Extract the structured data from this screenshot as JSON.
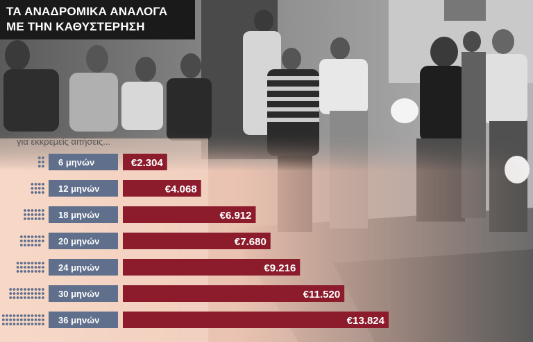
{
  "header": {
    "title_line1": "ΤΑ ΑΝΑΔΡΟΜΙΚΑ ΑΝΑΛΟΓΑ",
    "title_line2": "ΜΕ ΤΗΝ ΚΑΘΥΣΤΕΡΗΣΗ"
  },
  "subtitle": "για εκκρεμείς αιτήσεις...",
  "colors": {
    "label_box": "#5f6f8c",
    "bar": "#8c1c2c",
    "dot": "#5f6f8c",
    "title_bg": "#1a1a1a"
  },
  "chart_data": {
    "type": "bar",
    "orientation": "horizontal",
    "title": "ΤΑ ΑΝΑΔΡΟΜΙΚΑ ΑΝΑΛΟΓΑ ΜΕ ΤΗΝ ΚΑΘΥΣΤΕΡΗΣΗ",
    "subtitle": "για εκκρεμείς αιτήσεις...",
    "categories": [
      "6 μηνών",
      "12 μηνών",
      "18 μηνών",
      "20 μηνών",
      "24 μηνών",
      "30 μηνών",
      "36 μηνών"
    ],
    "months": [
      6,
      12,
      18,
      20,
      24,
      30,
      36
    ],
    "values": [
      2304,
      4068,
      6912,
      7680,
      9216,
      11520,
      13824
    ],
    "value_labels": [
      "€2.304",
      "€4.068",
      "€6.912",
      "€7.680",
      "€9.216",
      "€11.520",
      "€13.824"
    ],
    "unit": "€",
    "xlim": [
      0,
      13824
    ],
    "grid": false,
    "legend": "none"
  }
}
